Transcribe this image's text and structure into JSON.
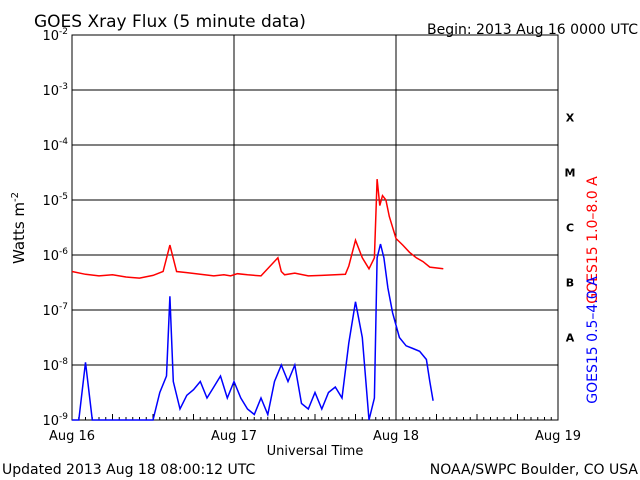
{
  "header": {
    "title": "GOES Xray Flux (5 minute data)",
    "begin": "Begin:  2013 Aug 16 0000 UTC"
  },
  "footer": {
    "updated": "Updated 2013 Aug 18 08:00:12 UTC",
    "credit": "NOAA/SWPC Boulder, CO USA"
  },
  "colors": {
    "long_channel": "#ff0000",
    "short_channel": "#0000ff",
    "axes": "#000000"
  },
  "chart_data": {
    "type": "line",
    "title": "GOES Xray Flux (5 minute data)",
    "xlabel": "Universal Time",
    "ylabel_text": "Watts m",
    "ylabel_exponent": "-2",
    "yscale": "log",
    "ylim": [
      1e-09,
      0.01
    ],
    "grid": true,
    "x_ticks": [
      "Aug 16",
      "Aug 17",
      "Aug 18",
      "Aug 19"
    ],
    "y_ticks": [
      {
        "base": "10",
        "exp": "-9"
      },
      {
        "base": "10",
        "exp": "-8"
      },
      {
        "base": "10",
        "exp": "-7"
      },
      {
        "base": "10",
        "exp": "-6"
      },
      {
        "base": "10",
        "exp": "-5"
      },
      {
        "base": "10",
        "exp": "-4"
      },
      {
        "base": "10",
        "exp": "-3"
      },
      {
        "base": "10",
        "exp": "-2"
      }
    ],
    "flare_classes": [
      {
        "label": "A",
        "log_flux": -7.5
      },
      {
        "label": "B",
        "log_flux": -6.5
      },
      {
        "label": "C",
        "log_flux": -5.5
      },
      {
        "label": "M",
        "log_flux": -4.5
      },
      {
        "label": "X",
        "log_flux": -3.5
      }
    ],
    "series": [
      {
        "name": "GOES15 1.0–8.0 A",
        "color": "#ff0000",
        "x_hours": [
          0,
          2,
          4,
          6,
          8,
          10,
          12,
          13.5,
          14.5,
          15.5,
          17,
          19,
          21,
          22.5,
          23.5,
          24.5,
          26,
          28,
          30.5,
          31,
          31.5,
          33,
          35,
          37,
          40.5,
          41,
          42,
          43,
          44,
          44.8,
          45.2,
          45.6,
          46,
          46.5,
          47,
          48,
          49,
          50,
          51,
          52,
          53,
          55
        ],
        "log_flux": [
          -6.3,
          -6.35,
          -6.38,
          -6.36,
          -6.4,
          -6.42,
          -6.37,
          -6.3,
          -5.82,
          -6.3,
          -6.32,
          -6.35,
          -6.38,
          -6.36,
          -6.38,
          -6.34,
          -6.36,
          -6.38,
          -6.05,
          -6.3,
          -6.36,
          -6.33,
          -6.38,
          -6.37,
          -6.35,
          -6.2,
          -5.73,
          -6.05,
          -6.25,
          -6.05,
          -4.62,
          -5.1,
          -4.92,
          -5.0,
          -5.3,
          -5.7,
          -5.82,
          -5.95,
          -6.05,
          -6.12,
          -6.22,
          -6.25
        ]
      },
      {
        "name": "GOES15 0.5–4.0 A",
        "color": "#0000ff",
        "x_hours": [
          0,
          1,
          2,
          3,
          4,
          5,
          6,
          7,
          8,
          9,
          10,
          11,
          12,
          13,
          14,
          14.5,
          15,
          16,
          17,
          18,
          19,
          20,
          21,
          22,
          23,
          24,
          25,
          26,
          27,
          28,
          29,
          30,
          31,
          32,
          33,
          34,
          35,
          36,
          37,
          38,
          39,
          40,
          41,
          42,
          43,
          44,
          44.8,
          45.2,
          45.7,
          46.2,
          46.8,
          47.5,
          48.5,
          49.5,
          50.5,
          51.5,
          52.5,
          53,
          53.5
        ],
        "log_flux": [
          -9.0,
          -9.0,
          -7.95,
          -9.0,
          -9.0,
          -9.0,
          -9.0,
          -9.0,
          -9.0,
          -9.0,
          -9.0,
          -9.0,
          -9.0,
          -8.5,
          -8.2,
          -6.75,
          -8.3,
          -8.8,
          -8.55,
          -8.45,
          -8.3,
          -8.6,
          -8.4,
          -8.2,
          -8.6,
          -8.3,
          -8.6,
          -8.8,
          -8.9,
          -8.6,
          -8.9,
          -8.3,
          -8.0,
          -8.3,
          -8.0,
          -8.7,
          -8.8,
          -8.5,
          -8.8,
          -8.5,
          -8.4,
          -8.6,
          -7.6,
          -6.85,
          -7.5,
          -9.0,
          -8.6,
          -6.05,
          -5.8,
          -6.05,
          -6.6,
          -7.05,
          -7.5,
          -7.65,
          -7.7,
          -7.75,
          -7.9,
          -8.3,
          -8.65
        ]
      }
    ]
  }
}
